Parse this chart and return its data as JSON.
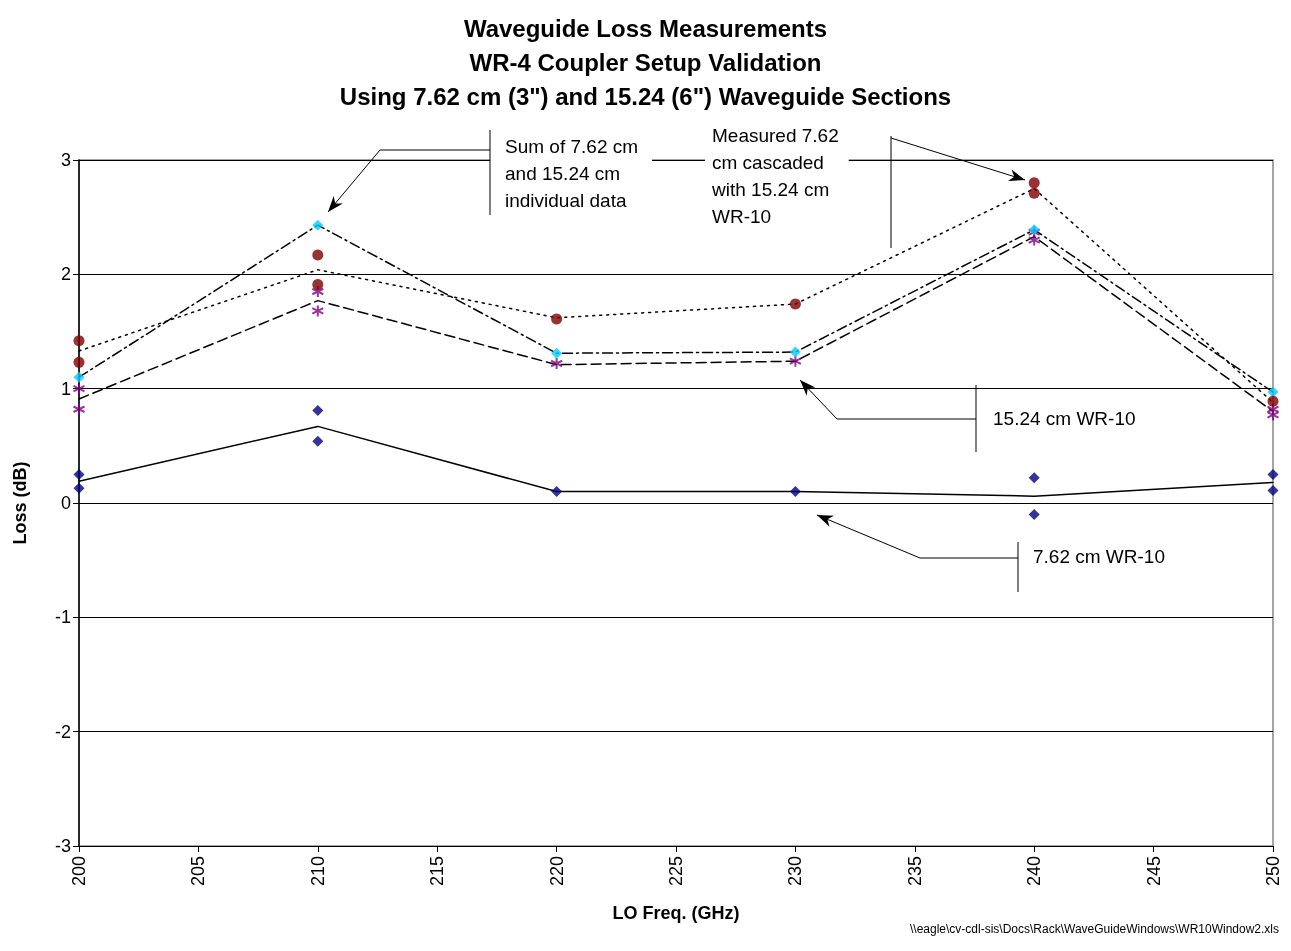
{
  "chart_data": {
    "type": "scatter",
    "title": "Waveguide Loss Measurements\nWR-4 Coupler Setup Validation\nUsing 7.62 cm (3\") and 15.24 (6\") Waveguide Sections",
    "xlabel": "LO Freq. (GHz)",
    "ylabel": "Loss (dB)",
    "xlim": [
      200,
      250
    ],
    "xticks": [
      200,
      205,
      210,
      215,
      220,
      225,
      230,
      235,
      240,
      245,
      250
    ],
    "ylim": [
      -3,
      3
    ],
    "yticks": [
      -3,
      -2,
      -1,
      0,
      1,
      2,
      3
    ],
    "grid": "y",
    "series": [
      {
        "marker": "diamond",
        "color": "#000080",
        "x": [
          200,
          200,
          210,
          210,
          220,
          230,
          240,
          240,
          250,
          250
        ],
        "values": [
          0.25,
          0.13,
          0.81,
          0.54,
          0.1,
          0.1,
          0.22,
          -0.1,
          0.25,
          0.11
        ]
      },
      {
        "type": "line",
        "marker": "none",
        "line_style": "solid",
        "color": "#000000",
        "x": [
          200,
          210,
          220,
          230,
          240,
          250
        ],
        "values": [
          0.19,
          0.67,
          0.1,
          0.1,
          0.06,
          0.18
        ]
      },
      {
        "marker": "cross",
        "color": "#800080",
        "x": [
          200,
          200,
          210,
          210,
          220,
          230,
          240,
          240,
          250,
          250
        ],
        "values": [
          1.0,
          0.82,
          1.85,
          1.68,
          1.22,
          1.24,
          2.37,
          2.3,
          0.82,
          0.77
        ]
      },
      {
        "type": "line",
        "marker": "none",
        "line_style": "dashed",
        "color": "#000000",
        "x": [
          200,
          210,
          220,
          230,
          240,
          250
        ],
        "values": [
          0.91,
          1.77,
          1.21,
          1.24,
          2.33,
          0.8
        ]
      },
      {
        "marker": "diamond",
        "color": "#00ccff",
        "x": [
          200,
          210,
          220,
          230,
          240,
          250
        ],
        "values": [
          1.1,
          2.43,
          1.31,
          1.32,
          2.39,
          0.97
        ]
      },
      {
        "type": "line",
        "marker": "none",
        "line_style": "dashdot",
        "color": "#000000",
        "x": [
          200,
          210,
          220,
          230,
          240,
          250
        ],
        "values": [
          1.1,
          2.43,
          1.31,
          1.32,
          2.39,
          0.97
        ]
      },
      {
        "marker": "circle",
        "color": "#800000",
        "x": [
          200,
          200,
          210,
          210,
          220,
          230,
          240,
          240,
          250
        ],
        "values": [
          1.42,
          1.23,
          2.17,
          1.91,
          1.61,
          1.74,
          2.8,
          2.71,
          0.89
        ]
      },
      {
        "type": "line",
        "marker": "none",
        "line_style": "dotted",
        "color": "#000000",
        "x": [
          200,
          210,
          220,
          230,
          240,
          250
        ],
        "values": [
          1.33,
          2.04,
          1.62,
          1.74,
          2.75,
          0.88
        ]
      }
    ],
    "annotations": [
      "Sum of 7.62 cm\nand 15.24 cm\nindividual data",
      "Measured 7.62\ncm cascaded\nwith 15.24 cm\nWR-10",
      "15.24 cm WR-10",
      "7.62 cm WR-10",
      "\\\\eagle\\cv-cdl-sis\\Docs\\Rack\\WaveGuideWindows\\WR10Window2.xls"
    ]
  }
}
